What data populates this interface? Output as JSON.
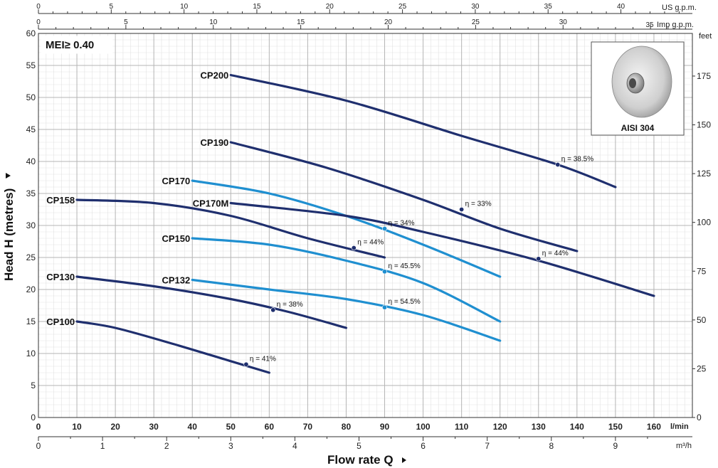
{
  "chart_data": {
    "type": "line",
    "badge": "MEI≥ 0.40",
    "xlabel": "Flow rate Q",
    "ylabel": "Head H (metres)",
    "x_unit": "l/min",
    "x_unit_m3h": "m³/h",
    "y_unit_right": "feet",
    "us_gpm_unit": "US g.p.m.",
    "imp_gpm_unit": "Imp g.p.m.",
    "xlim": [
      0,
      170
    ],
    "ylim": [
      0,
      60
    ],
    "x_ticks": [
      0,
      10,
      20,
      30,
      40,
      50,
      60,
      70,
      80,
      90,
      100,
      110,
      120,
      130,
      140,
      150,
      160
    ],
    "y_ticks": [
      0,
      5,
      10,
      15,
      20,
      25,
      30,
      35,
      40,
      45,
      50,
      55,
      60
    ],
    "feet_ticks": [
      0,
      25,
      50,
      75,
      100,
      125,
      150,
      175
    ],
    "m3h_ticks": [
      0,
      1,
      2,
      3,
      4,
      5,
      6,
      7,
      8,
      9
    ],
    "us_gpm_ticks": [
      0,
      5,
      10,
      15,
      20,
      25,
      30,
      35,
      40
    ],
    "imp_gpm_ticks": [
      0,
      5,
      10,
      15,
      20,
      25,
      30,
      35
    ],
    "grid": true,
    "inset_label": "AISI 304",
    "series": [
      {
        "name": "CP200",
        "color": "#1f2f6e",
        "x": [
          50,
          80,
          110,
          135,
          150
        ],
        "y": [
          53.5,
          49.5,
          44.0,
          39.5,
          36.0
        ],
        "eta": {
          "label": "η = 38.5%",
          "x": 135,
          "y": 39.5
        }
      },
      {
        "name": "CP190",
        "color": "#1f2f6e",
        "x": [
          50,
          75,
          100,
          120,
          140
        ],
        "y": [
          43.0,
          39.0,
          34.0,
          29.5,
          26.0
        ],
        "eta": {
          "label": "η = 33%",
          "x": 110,
          "y": 32.5
        }
      },
      {
        "name": "CP170",
        "color": "#1f8fd0",
        "x": [
          40,
          60,
          80,
          100,
          120
        ],
        "y": [
          37.0,
          35.0,
          31.5,
          27.0,
          22.0
        ],
        "eta": {
          "label": "η = 34%",
          "x": 90,
          "y": 29.5
        }
      },
      {
        "name": "CP170M",
        "color": "#1f2f6e",
        "x": [
          50,
          80,
          100,
          130,
          160
        ],
        "y": [
          33.5,
          31.5,
          29.0,
          24.5,
          19.0
        ],
        "eta": {
          "label": "η = 44%",
          "x": 130,
          "y": 24.8
        }
      },
      {
        "name": "CP158",
        "color": "#1f2f6e",
        "x": [
          10,
          30,
          50,
          70,
          90
        ],
        "y": [
          34.0,
          33.5,
          31.5,
          28.0,
          25.0
        ],
        "eta": {
          "label": "η = 44%",
          "x": 82,
          "y": 26.5
        }
      },
      {
        "name": "CP150",
        "color": "#1f8fd0",
        "x": [
          40,
          60,
          80,
          100,
          120
        ],
        "y": [
          28.0,
          27.0,
          24.5,
          21.0,
          15.0
        ],
        "eta": {
          "label": "η = 45.5%",
          "x": 90,
          "y": 22.8
        }
      },
      {
        "name": "CP132",
        "color": "#1f8fd0",
        "x": [
          40,
          60,
          80,
          100,
          120
        ],
        "y": [
          21.5,
          20.0,
          18.5,
          16.0,
          12.0
        ],
        "eta": {
          "label": "η = 54.5%",
          "x": 90,
          "y": 17.2
        }
      },
      {
        "name": "CP130",
        "color": "#1f2f6e",
        "x": [
          10,
          30,
          50,
          65,
          80
        ],
        "y": [
          22.0,
          20.5,
          18.5,
          16.5,
          14.0
        ],
        "eta": {
          "label": "η = 38%",
          "x": 61,
          "y": 16.8
        }
      },
      {
        "name": "CP100",
        "color": "#1f2f6e",
        "x": [
          10,
          20,
          35,
          50,
          60
        ],
        "y": [
          15.0,
          14.0,
          11.5,
          8.8,
          7.0
        ],
        "eta": {
          "label": "η = 41%",
          "x": 54,
          "y": 8.3
        }
      }
    ]
  }
}
